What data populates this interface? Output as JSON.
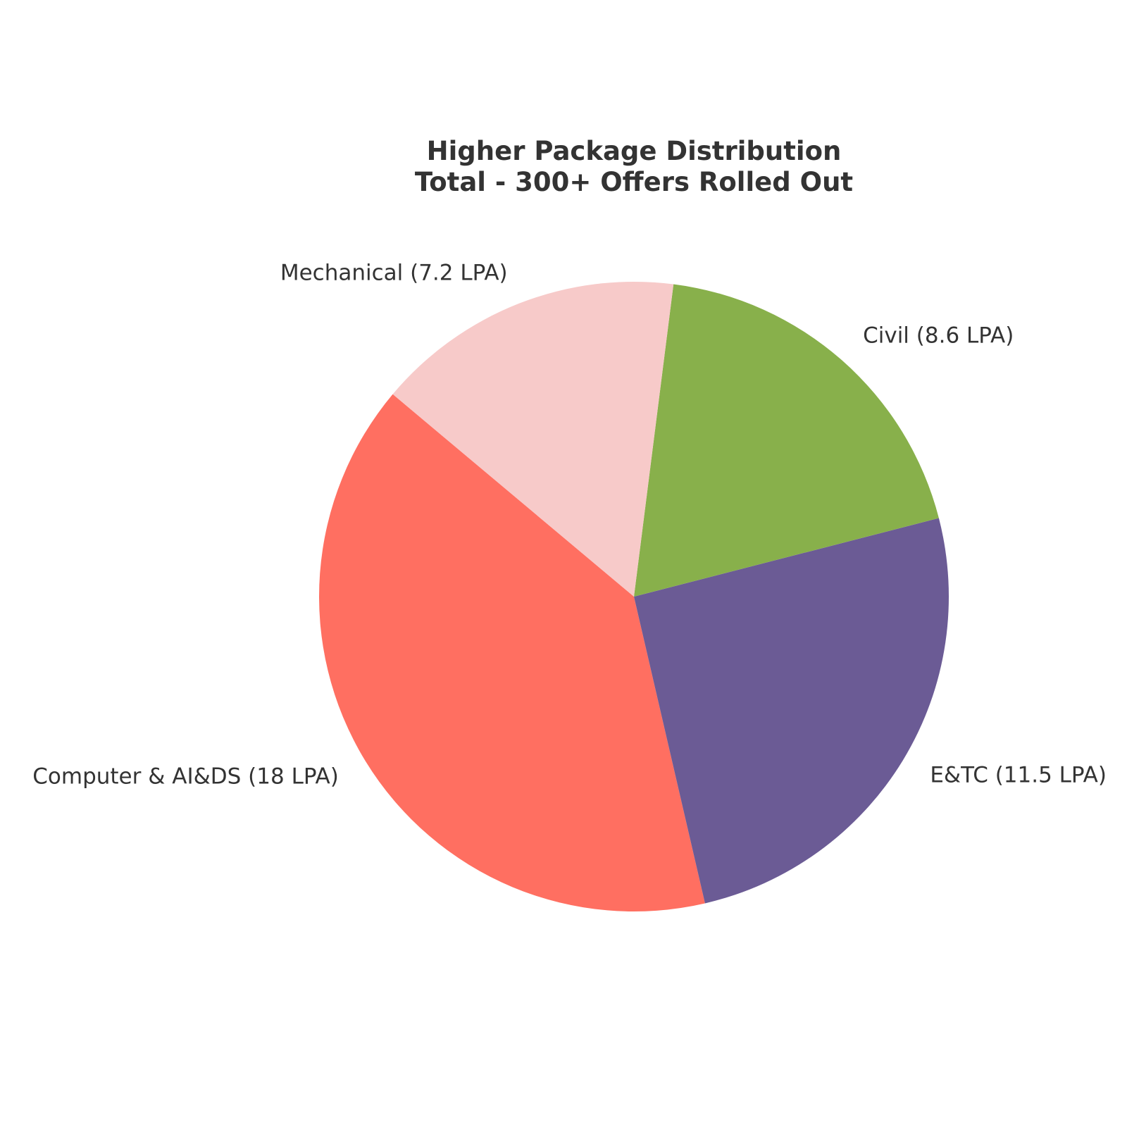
{
  "chart_data": {
    "type": "pie",
    "title": "Higher Package Distribution",
    "subtitle": "Total - 300+ Offers Rolled Out",
    "start_angle_deg": 140,
    "direction": "counterclockwise",
    "slices": [
      {
        "label": "Computer & AI&DS (18 LPA)",
        "value": 18,
        "color": "#FF6F61"
      },
      {
        "label": "E&TC (11.5 LPA)",
        "value": 11.5,
        "color": "#6B5B95"
      },
      {
        "label": "Civil (8.6 LPA)",
        "value": 8.6,
        "color": "#88B04B"
      },
      {
        "label": "Mechanical (7.2 LPA)",
        "value": 7.2,
        "color": "#F7CAC9"
      }
    ]
  }
}
